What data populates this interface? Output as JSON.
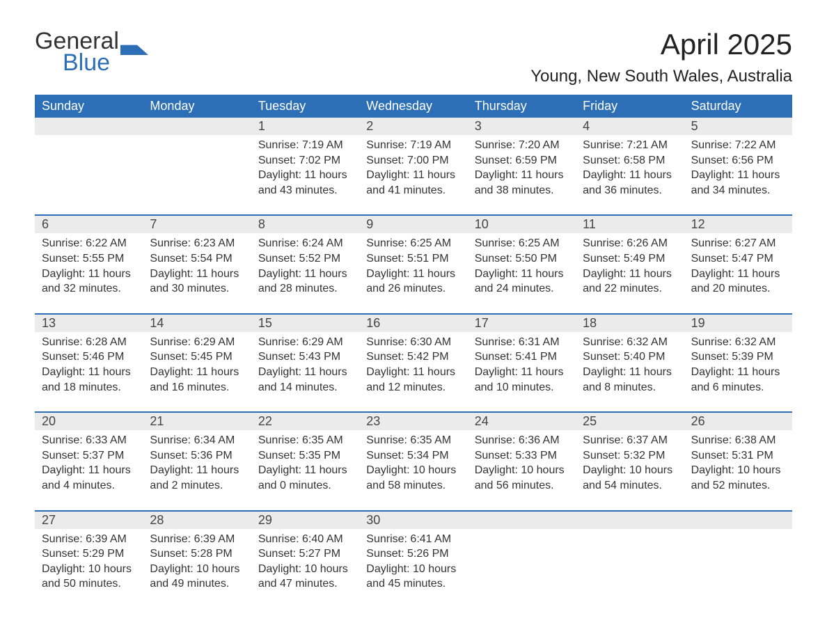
{
  "logo": {
    "word1": "General",
    "word2": "Blue"
  },
  "title": "April 2025",
  "location": "Young, New South Wales, Australia",
  "colors": {
    "header_bg": "#2d6fb6",
    "header_text": "#ffffff",
    "daynum_bg": "#ebebeb",
    "border": "#2d6fb6",
    "body_text": "#333333",
    "page_bg": "#ffffff"
  },
  "day_headers": [
    "Sunday",
    "Monday",
    "Tuesday",
    "Wednesday",
    "Thursday",
    "Friday",
    "Saturday"
  ],
  "weeks": [
    [
      null,
      null,
      {
        "n": "1",
        "sunrise": "7:19 AM",
        "sunset": "7:02 PM",
        "daylight": "11 hours and 43 minutes."
      },
      {
        "n": "2",
        "sunrise": "7:19 AM",
        "sunset": "7:00 PM",
        "daylight": "11 hours and 41 minutes."
      },
      {
        "n": "3",
        "sunrise": "7:20 AM",
        "sunset": "6:59 PM",
        "daylight": "11 hours and 38 minutes."
      },
      {
        "n": "4",
        "sunrise": "7:21 AM",
        "sunset": "6:58 PM",
        "daylight": "11 hours and 36 minutes."
      },
      {
        "n": "5",
        "sunrise": "7:22 AM",
        "sunset": "6:56 PM",
        "daylight": "11 hours and 34 minutes."
      }
    ],
    [
      {
        "n": "6",
        "sunrise": "6:22 AM",
        "sunset": "5:55 PM",
        "daylight": "11 hours and 32 minutes."
      },
      {
        "n": "7",
        "sunrise": "6:23 AM",
        "sunset": "5:54 PM",
        "daylight": "11 hours and 30 minutes."
      },
      {
        "n": "8",
        "sunrise": "6:24 AM",
        "sunset": "5:52 PM",
        "daylight": "11 hours and 28 minutes."
      },
      {
        "n": "9",
        "sunrise": "6:25 AM",
        "sunset": "5:51 PM",
        "daylight": "11 hours and 26 minutes."
      },
      {
        "n": "10",
        "sunrise": "6:25 AM",
        "sunset": "5:50 PM",
        "daylight": "11 hours and 24 minutes."
      },
      {
        "n": "11",
        "sunrise": "6:26 AM",
        "sunset": "5:49 PM",
        "daylight": "11 hours and 22 minutes."
      },
      {
        "n": "12",
        "sunrise": "6:27 AM",
        "sunset": "5:47 PM",
        "daylight": "11 hours and 20 minutes."
      }
    ],
    [
      {
        "n": "13",
        "sunrise": "6:28 AM",
        "sunset": "5:46 PM",
        "daylight": "11 hours and 18 minutes."
      },
      {
        "n": "14",
        "sunrise": "6:29 AM",
        "sunset": "5:45 PM",
        "daylight": "11 hours and 16 minutes."
      },
      {
        "n": "15",
        "sunrise": "6:29 AM",
        "sunset": "5:43 PM",
        "daylight": "11 hours and 14 minutes."
      },
      {
        "n": "16",
        "sunrise": "6:30 AM",
        "sunset": "5:42 PM",
        "daylight": "11 hours and 12 minutes."
      },
      {
        "n": "17",
        "sunrise": "6:31 AM",
        "sunset": "5:41 PM",
        "daylight": "11 hours and 10 minutes."
      },
      {
        "n": "18",
        "sunrise": "6:32 AM",
        "sunset": "5:40 PM",
        "daylight": "11 hours and 8 minutes."
      },
      {
        "n": "19",
        "sunrise": "6:32 AM",
        "sunset": "5:39 PM",
        "daylight": "11 hours and 6 minutes."
      }
    ],
    [
      {
        "n": "20",
        "sunrise": "6:33 AM",
        "sunset": "5:37 PM",
        "daylight": "11 hours and 4 minutes."
      },
      {
        "n": "21",
        "sunrise": "6:34 AM",
        "sunset": "5:36 PM",
        "daylight": "11 hours and 2 minutes."
      },
      {
        "n": "22",
        "sunrise": "6:35 AM",
        "sunset": "5:35 PM",
        "daylight": "11 hours and 0 minutes."
      },
      {
        "n": "23",
        "sunrise": "6:35 AM",
        "sunset": "5:34 PM",
        "daylight": "10 hours and 58 minutes."
      },
      {
        "n": "24",
        "sunrise": "6:36 AM",
        "sunset": "5:33 PM",
        "daylight": "10 hours and 56 minutes."
      },
      {
        "n": "25",
        "sunrise": "6:37 AM",
        "sunset": "5:32 PM",
        "daylight": "10 hours and 54 minutes."
      },
      {
        "n": "26",
        "sunrise": "6:38 AM",
        "sunset": "5:31 PM",
        "daylight": "10 hours and 52 minutes."
      }
    ],
    [
      {
        "n": "27",
        "sunrise": "6:39 AM",
        "sunset": "5:29 PM",
        "daylight": "10 hours and 50 minutes."
      },
      {
        "n": "28",
        "sunrise": "6:39 AM",
        "sunset": "5:28 PM",
        "daylight": "10 hours and 49 minutes."
      },
      {
        "n": "29",
        "sunrise": "6:40 AM",
        "sunset": "5:27 PM",
        "daylight": "10 hours and 47 minutes."
      },
      {
        "n": "30",
        "sunrise": "6:41 AM",
        "sunset": "5:26 PM",
        "daylight": "10 hours and 45 minutes."
      },
      null,
      null,
      null
    ]
  ],
  "labels": {
    "sunrise": "Sunrise:",
    "sunset": "Sunset:",
    "daylight": "Daylight:"
  }
}
